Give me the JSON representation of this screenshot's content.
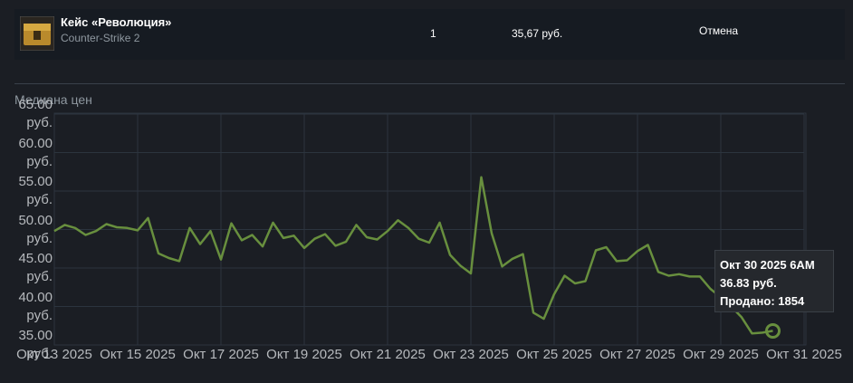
{
  "listing": {
    "name": "Кейс «Революция»",
    "game": "Counter-Strike 2",
    "quantity": "1",
    "price": "35,67 руб.",
    "action": "Отмена"
  },
  "chart_data": {
    "type": "line",
    "ylabel": "Медиана цен",
    "grid": true,
    "x": [
      "Окт 13 2025 12AM",
      "Окт 13 2025 6AM",
      "Окт 13 2025 12PM",
      "Окт 13 2025 6PM",
      "Окт 14 2025 12AM",
      "Окт 14 2025 6AM",
      "Окт 14 2025 12PM",
      "Окт 14 2025 6PM",
      "Окт 15 2025 12AM",
      "Окт 15 2025 6AM",
      "Окт 15 2025 12PM",
      "Окт 15 2025 6PM",
      "Окт 16 2025 12AM",
      "Окт 16 2025 6AM",
      "Окт 16 2025 12PM",
      "Окт 16 2025 6PM",
      "Окт 17 2025 12AM",
      "Окт 17 2025 6AM",
      "Окт 17 2025 12PM",
      "Окт 17 2025 6PM",
      "Окт 18 2025 12AM",
      "Окт 18 2025 6AM",
      "Окт 18 2025 12PM",
      "Окт 18 2025 6PM",
      "Окт 19 2025 12AM",
      "Окт 19 2025 6AM",
      "Окт 19 2025 12PM",
      "Окт 19 2025 6PM",
      "Окт 20 2025 12AM",
      "Окт 20 2025 6AM",
      "Окт 20 2025 12PM",
      "Окт 20 2025 6PM",
      "Окт 21 2025 12AM",
      "Окт 21 2025 6AM",
      "Окт 21 2025 12PM",
      "Окт 21 2025 6PM",
      "Окт 22 2025 12AM",
      "Окт 22 2025 6AM",
      "Окт 22 2025 12PM",
      "Окт 22 2025 6PM",
      "Окт 23 2025 12AM",
      "Окт 23 2025 6AM",
      "Окт 23 2025 12PM",
      "Окт 23 2025 6PM",
      "Окт 24 2025 12AM",
      "Окт 24 2025 6AM",
      "Окт 24 2025 12PM",
      "Окт 24 2025 6PM",
      "Окт 25 2025 12AM",
      "Окт 25 2025 6AM",
      "Окт 25 2025 12PM",
      "Окт 25 2025 6PM",
      "Окт 26 2025 12AM",
      "Окт 26 2025 6AM",
      "Окт 26 2025 12PM",
      "Окт 26 2025 6PM",
      "Окт 27 2025 12AM",
      "Окт 27 2025 6AM",
      "Окт 27 2025 12PM",
      "Окт 27 2025 6PM",
      "Окт 28 2025 12AM",
      "Окт 28 2025 6AM",
      "Окт 28 2025 12PM",
      "Окт 28 2025 6PM",
      "Окт 29 2025 12AM",
      "Окт 29 2025 6AM",
      "Окт 29 2025 12PM",
      "Окт 29 2025 6PM",
      "Окт 30 2025 12AM",
      "Окт 30 2025 6AM"
    ],
    "series": [
      {
        "color": "#688f3e",
        "values": [
          49.8,
          50.6,
          50.2,
          49.3,
          49.8,
          50.7,
          50.3,
          50.2,
          49.9,
          51.5,
          46.9,
          46.3,
          45.9,
          50.2,
          48.1,
          49.8,
          46.1,
          50.8,
          48.6,
          49.3,
          47.8,
          50.9,
          48.9,
          49.2,
          47.6,
          48.8,
          49.4,
          47.9,
          48.4,
          50.6,
          49.0,
          48.7,
          49.8,
          51.2,
          50.2,
          48.8,
          48.3,
          50.9,
          46.7,
          45.3,
          44.3,
          56.8,
          49.5,
          45.2,
          46.2,
          46.8,
          39.2,
          38.4,
          41.6,
          44.0,
          43.0,
          43.3,
          47.3,
          47.7,
          45.9,
          46.0,
          47.2,
          48.0,
          44.5,
          44.0,
          44.2,
          43.9,
          43.9,
          42.3,
          41.2,
          40.0,
          38.6,
          36.5,
          36.6,
          36.83
        ]
      }
    ],
    "ylim": [
      35,
      65
    ],
    "yticks": [
      {
        "value": 35,
        "label": "35.00 руб."
      },
      {
        "value": 40,
        "label": "40.00 руб."
      },
      {
        "value": 45,
        "label": "45.00 руб."
      },
      {
        "value": 50,
        "label": "50.00 руб."
      },
      {
        "value": 55,
        "label": "55.00 руб."
      },
      {
        "value": 60,
        "label": "60.00 руб."
      },
      {
        "value": 65,
        "label": "65.00 руб."
      }
    ],
    "xlim": [
      "Окт 13 2025 12AM",
      "Окт 31 2025 12AM"
    ],
    "xticks": [
      "Окт 13 2025",
      "Окт 15 2025",
      "Окт 17 2025",
      "Окт 19 2025",
      "Окт 21 2025",
      "Окт 23 2025",
      "Окт 25 2025",
      "Окт 27 2025",
      "Окт 29 2025",
      "Окт 31 2025"
    ],
    "tooltip": {
      "price": "36.83 руб.",
      "sold": "Продано: 1854"
    }
  }
}
